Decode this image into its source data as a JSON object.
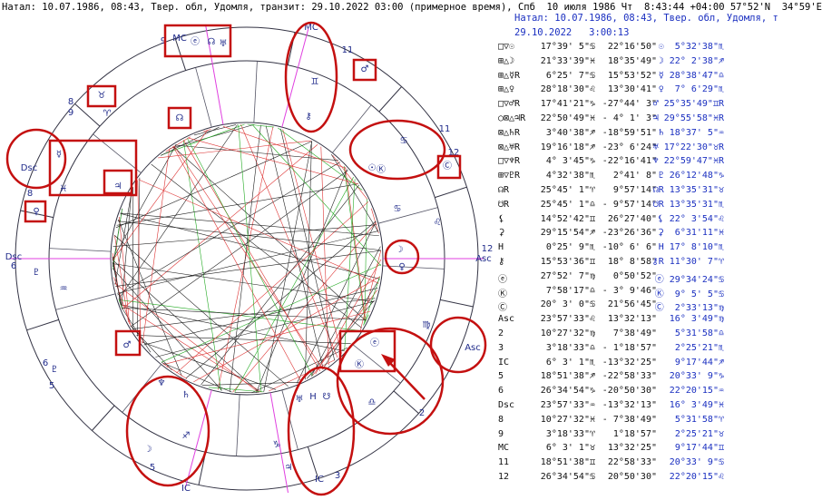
{
  "header": {
    "title": "Натал: 10.07.1986, 08:43, Твер. обл, Удомля, транзит: 29.10.2022 03:00 (примерное время), Спб  10 июля 1986 Чт  8:43:44 +04:00 57°52'N  34°59'E"
  },
  "panel": {
    "title": "Натал: 10.07.1986, 08:43, Твер. обл, Удомля, т",
    "transit_time": "29.10.2022   3:00:13"
  },
  "table": {
    "rows": [
      [
        "□▽☉",
        "17°39' 5\"♋",
        "22°16'50\"",
        "☉  5°32'38\"♏"
      ],
      [
        "⊞△☽",
        "21°33'39\"♓",
        "18°35'49\"",
        "☽ 22° 2'38\"♐"
      ],
      [
        "⊞△☿R",
        "6°25' 7\"♋",
        "15°53'52\"",
        "☿ 28°38'47\"♎"
      ],
      [
        "⊞△♀",
        "28°18'30\"♌",
        "13°30'41\"",
        "♀  7° 6'29\"♏"
      ],
      [
        "□▽♂R",
        "17°41'21\"♑",
        "-27°44' 3\"",
        "♂ 25°35'49\"♊R"
      ],
      [
        "○⊠△♃R",
        "22°50'49\"♓",
        "- 4° 1' 3\"",
        "♃ 29°55'58\"♓R"
      ],
      [
        "⊠△♄R",
        "3°40'38\"♐",
        "-18°59'51\"",
        "♄ 18°37' 5\"♒"
      ],
      [
        "⊠△♅R",
        "19°16'18\"♐",
        "-23° 6'24\"",
        "♅ 17°22'30\"♉R"
      ],
      [
        "□▽♆R",
        "4° 3'45\"♑",
        "-22°16'41\"",
        "♆ 22°59'47\"♓R"
      ],
      [
        "⊞▽♇R",
        "4°32'38\"♏",
        "2°41' 8\"",
        "♇ 26°12'48\"♑"
      ],
      [
        "☊R",
        "25°45' 1\"♈",
        "9°57'14\"",
        "☊R 13°35'31\"♉"
      ],
      [
        "☋R",
        "25°45' 1\"♎",
        "- 9°57'14\"",
        "☋R 13°35'31\"♏"
      ],
      [
        "⚸",
        "14°52'42\"♊",
        "26°27'40\"",
        "⚸ 22° 3'54\"♌"
      ],
      [
        "⚳",
        "29°15'54\"♐",
        "-23°26'36\"",
        "⚳  6°31'11\"♓"
      ],
      [
        "H",
        "0°25' 9\"♏",
        "-10° 6' 6\"",
        "H 17° 8'10\"♏"
      ],
      [
        "⚷",
        "15°53'36\"♊",
        "18° 8'58\"",
        "⚷R 11°30' 7\"♈"
      ],
      [
        "ⓔ",
        "27°52' 7\"♍",
        "0°50'52\"",
        "ⓔ 29°34'24\"♋"
      ],
      [
        "Ⓚ",
        "7°58'17\"♎",
        "- 3° 9'46\"",
        "Ⓚ  9° 5' 5\"♋"
      ],
      [
        "Ⓒ",
        "20° 3' 0\"♋",
        "21°56'45\"",
        "Ⓒ  2°33'13\"♍"
      ],
      [
        "Asc",
        "23°57'33\"♌",
        "13°32'13\"",
        "16° 3'49\"♍"
      ],
      [
        "2",
        "10°27'32\"♍",
        "7°38'49\"",
        "5°31'58\"♎"
      ],
      [
        "3",
        "3°18'33\"♎",
        "- 1°18'57\"",
        "2°25'21\"♏"
      ],
      [
        "IC",
        "6° 3' 1\"♏",
        "-13°32'25\"",
        "9°17'44\"♐"
      ],
      [
        "5",
        "18°51'38\"♐",
        "-22°58'33\"",
        "20°33' 9\"♑"
      ],
      [
        "6",
        "26°34'54\"♑",
        "-20°50'30\"",
        "22°20'15\"♒"
      ],
      [
        "Dsc",
        "23°57'33\"♒",
        "-13°32'13\"",
        "16° 3'49\"♓"
      ],
      [
        "8",
        "10°27'32\"♓",
        "- 7°38'49\"",
        "5°31'58\"♈"
      ],
      [
        "9",
        "3°18'33\"♈",
        "1°18'57\"",
        "2°25'21\"♉"
      ],
      [
        "MC",
        "6° 3' 1\"♉",
        "13°32'25\"",
        "9°17'44\"♊"
      ],
      [
        "11",
        "18°51'38\"♊",
        "22°58'33\"",
        "20°33' 9\"♋"
      ],
      [
        "12",
        "26°34'54\"♋",
        "20°50'30\"",
        "22°20'15\"♌"
      ]
    ]
  },
  "chart": {
    "labels": [
      "MC",
      "11",
      "♊",
      "♂",
      "⚷",
      "9",
      "MC",
      "ⓔ",
      "☊",
      "♅",
      "8",
      "9",
      "♉",
      "♈",
      "☊",
      "Dsc",
      "☿",
      "♃",
      "♓",
      "8",
      "♀",
      "Dsc",
      "6",
      "♇",
      "♒",
      "♂",
      "6",
      "♇",
      "5",
      "♆",
      "♄",
      "♐",
      "☽",
      "5",
      "IC",
      "♅",
      "H",
      "☋",
      "♑",
      "♃",
      "IC",
      "3",
      "ⓔ",
      "Ⓚ",
      "♎",
      "2",
      "Asc",
      "♍",
      "☽",
      "♀",
      "Asc",
      "12",
      "♌",
      "♋",
      "11",
      "12",
      "♋",
      "☉",
      "Ⓚ",
      "Ⓒ"
    ]
  }
}
